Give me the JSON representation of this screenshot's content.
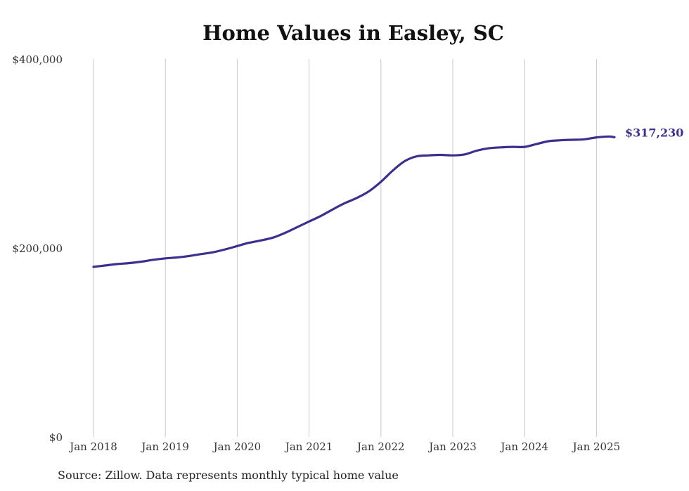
{
  "chart_data": {
    "type": "line",
    "title": "Home Values in Easley, SC",
    "source": "Source: Zillow. Data represents monthly typical home value",
    "ylim": [
      0,
      400000
    ],
    "y_ticks": [
      {
        "value": 0,
        "label": "$0"
      },
      {
        "value": 200000,
        "label": "$200,000"
      },
      {
        "value": 400000,
        "label": "$400,000"
      }
    ],
    "x_ticks": [
      "Jan 2018",
      "Jan 2019",
      "Jan 2020",
      "Jan 2021",
      "Jan 2022",
      "Jan 2023",
      "Jan 2024",
      "Jan 2025"
    ],
    "grid": {
      "vertical": true,
      "horizontal": false
    },
    "line_color": "#3b2f8f",
    "end_label": "$317,230",
    "series": [
      {
        "x": [
          "2018-01",
          "2018-03",
          "2018-05",
          "2018-07",
          "2018-09",
          "2018-11",
          "2019-01",
          "2019-03",
          "2019-05",
          "2019-07",
          "2019-09",
          "2019-11",
          "2020-01",
          "2020-03",
          "2020-05",
          "2020-07",
          "2020-09",
          "2020-11",
          "2021-01",
          "2021-03",
          "2021-05",
          "2021-07",
          "2021-09",
          "2021-11",
          "2022-01",
          "2022-03",
          "2022-05",
          "2022-07",
          "2022-09",
          "2022-11",
          "2023-01",
          "2023-03",
          "2023-05",
          "2023-07",
          "2023-09",
          "2023-11",
          "2024-01",
          "2024-03",
          "2024-05",
          "2024-07",
          "2024-09",
          "2024-11",
          "2025-01",
          "2025-03",
          "2025-04"
        ],
        "y": [
          180000,
          181500,
          183000,
          184000,
          185500,
          187500,
          189000,
          190000,
          191500,
          193500,
          195500,
          198500,
          202000,
          205500,
          208000,
          211000,
          216000,
          222000,
          228000,
          234000,
          241000,
          247500,
          253000,
          260000,
          270000,
          282000,
          292000,
          297000,
          298000,
          298500,
          298000,
          299000,
          303000,
          305500,
          306500,
          307000,
          307000,
          310000,
          313000,
          314000,
          314500,
          315000,
          317000,
          318000,
          317230
        ]
      }
    ]
  }
}
